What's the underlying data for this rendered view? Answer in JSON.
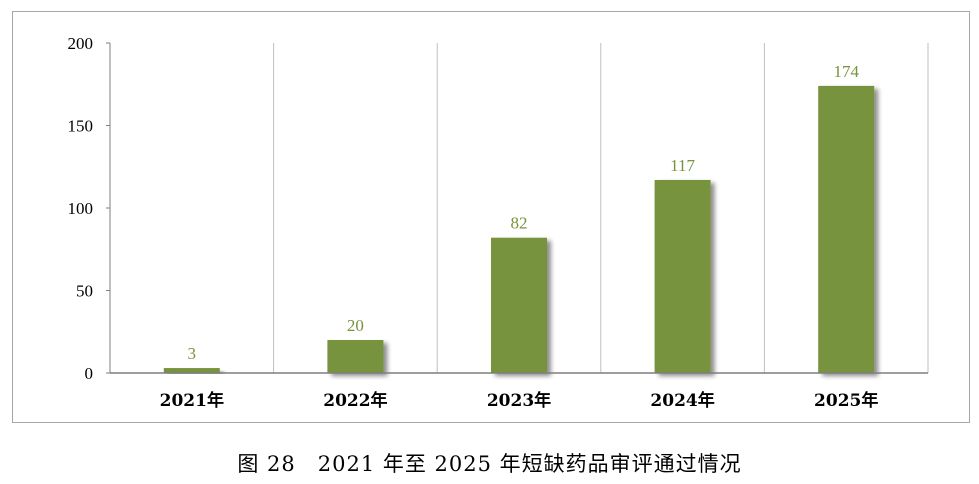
{
  "chart_data": {
    "type": "bar",
    "categories": [
      "2021年",
      "2022年",
      "2023年",
      "2024年",
      "2025年"
    ],
    "values": [
      3,
      20,
      82,
      117,
      174
    ],
    "y_ticks": [
      0,
      50,
      100,
      150,
      200
    ],
    "ylim": [
      0,
      200
    ],
    "grid": "vertical category separators",
    "bar_color": "#77933c",
    "label_color": "#77933c"
  },
  "caption": "图 28　2021 年至 2025 年短缺药品审评通过情况"
}
